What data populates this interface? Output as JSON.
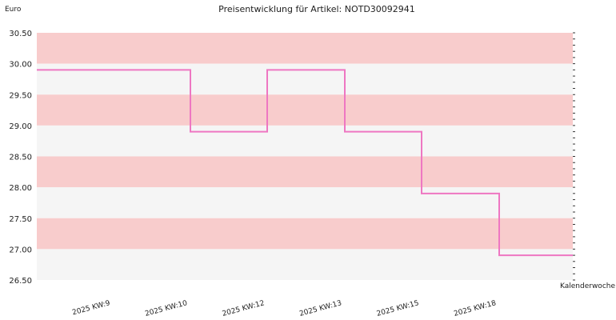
{
  "chart_data": {
    "type": "line",
    "step": true,
    "title": "Preisentwicklung für Artikel: NOTD30092941",
    "ylabel": "Euro",
    "xlabel": "Kalenderwoche",
    "ylim": [
      26.5,
      30.5
    ],
    "yticks": [
      "30.50",
      "30.00",
      "29.50",
      "29.00",
      "28.50",
      "28.00",
      "27.50",
      "27.00",
      "26.50"
    ],
    "categories": [
      "2025 KW:9",
      "2025 KW:10",
      "2025 KW:12",
      "2025 KW:13",
      "2025 KW:15",
      "2025 KW:18"
    ],
    "series": [
      {
        "values": [
          29.9,
          28.9,
          29.9,
          28.9,
          27.9,
          26.9
        ]
      }
    ],
    "grid": "alternating horizontal bands",
    "colors": {
      "line": "#ee77c2",
      "band_dark": "#f8cccc",
      "band_light": "#f5f5f5"
    }
  }
}
